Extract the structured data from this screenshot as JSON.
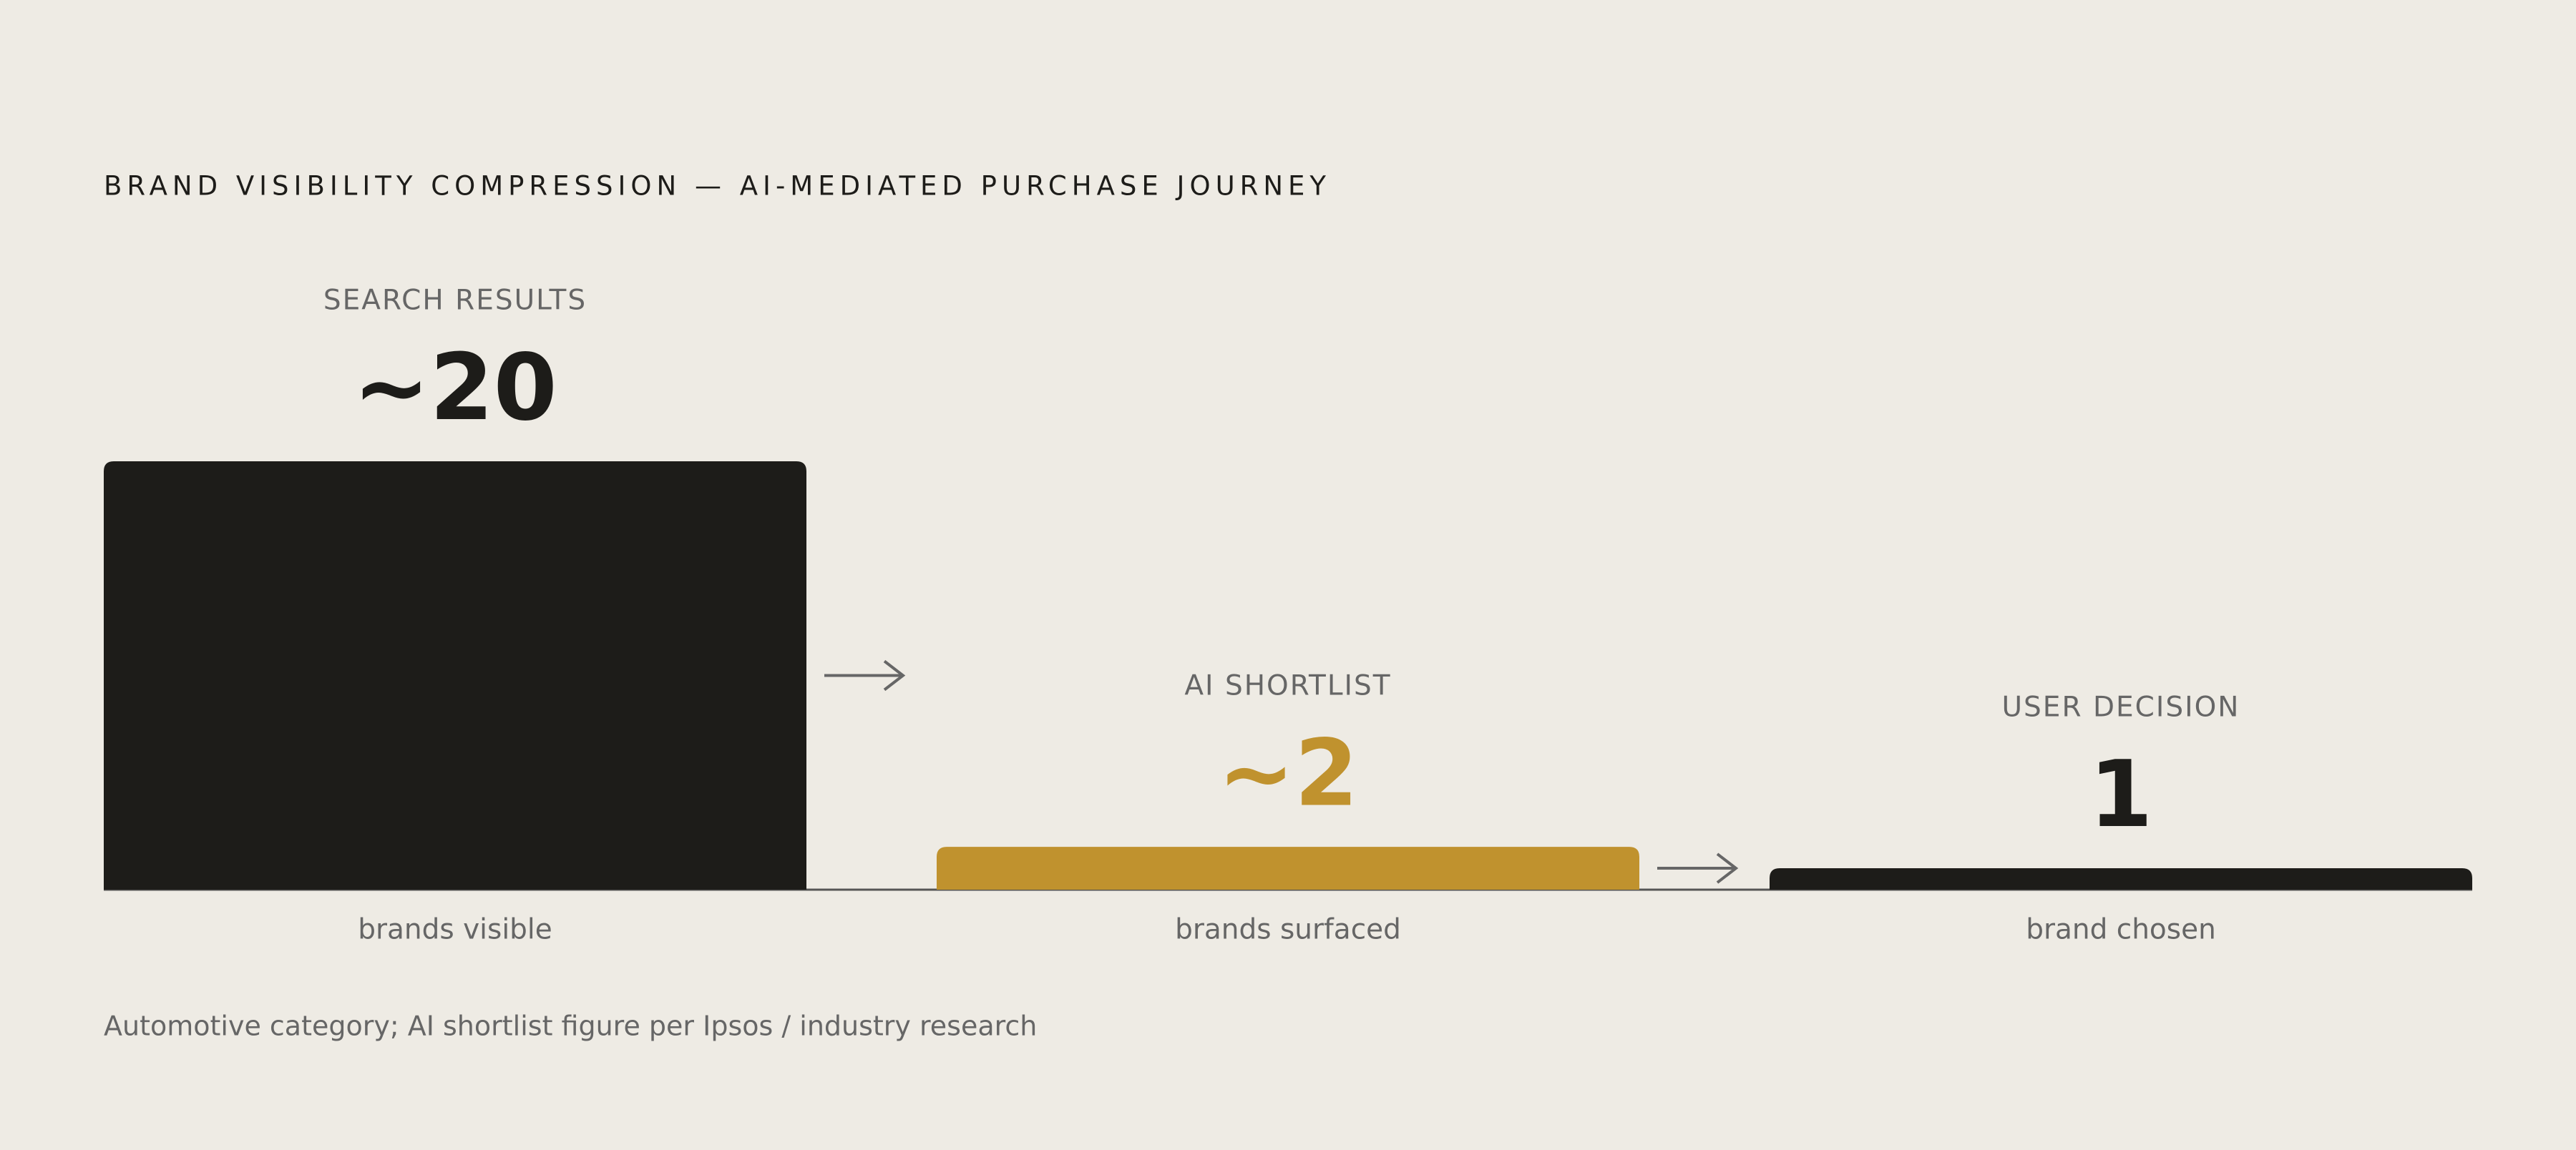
{
  "chart_data": {
    "type": "bar",
    "title": "BRAND VISIBILITY COMPRESSION — AI-MEDIATED PURCHASE JOURNEY",
    "categories": [
      "SEARCH RESULTS",
      "AI SHORTLIST",
      "USER DECISION"
    ],
    "values": [
      20,
      2,
      1
    ],
    "value_labels": [
      "~20",
      "~2",
      "1"
    ],
    "sublabels": [
      "brands visible",
      "brands surfaced",
      "brand chosen"
    ],
    "colors": [
      "#1d1c19",
      "#c0922e",
      "#1d1c19"
    ],
    "note": "Automotive category; AI shortlist figure per Ipsos / industry research"
  }
}
